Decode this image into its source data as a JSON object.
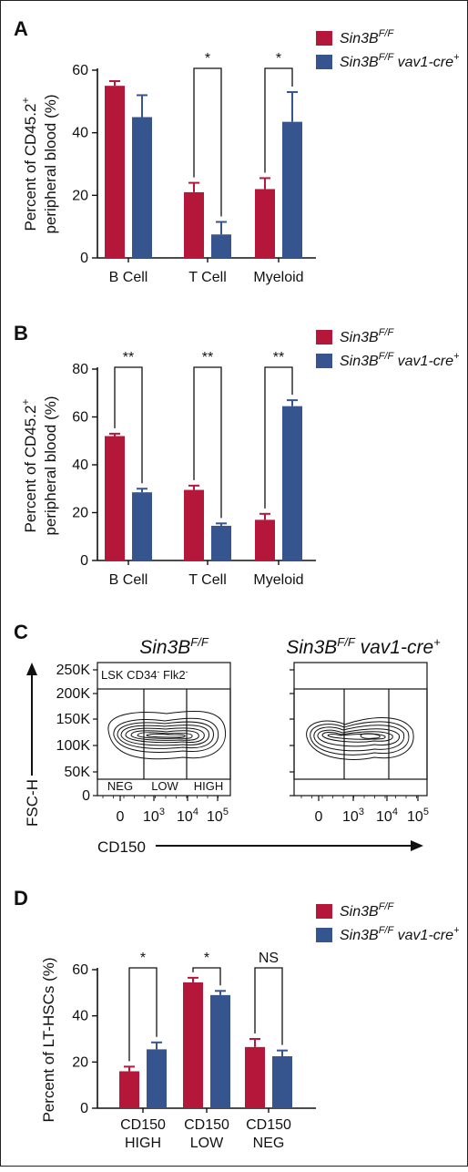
{
  "colors": {
    "flox": "#b5173a",
    "cre": "#36558f",
    "axis": "#111111",
    "contour": "#111111"
  },
  "legend": {
    "flox": {
      "base": "Sin3B",
      "sup": "F/F",
      "tail": "",
      "tail_sup": ""
    },
    "cre": {
      "base": "Sin3B",
      "sup": "F/F",
      "tail": " vav1-cre",
      "tail_sup": "+"
    }
  },
  "chart_data": [
    {
      "panel": "A",
      "type": "bar",
      "ylabel_line1": "Percent of CD45.2",
      "ylabel_sup": "+",
      "ylabel_line2": "peripheral blood (%)",
      "ylim": [
        0,
        60
      ],
      "yticks": [
        0,
        20,
        40,
        60
      ],
      "categories": [
        "B Cell",
        "T Cell",
        "Myeloid"
      ],
      "series": [
        {
          "key": "flox",
          "values": [
            55,
            21,
            22
          ],
          "errors": [
            1.5,
            3,
            3.5
          ]
        },
        {
          "key": "cre",
          "values": [
            45,
            7.5,
            43.5
          ],
          "errors": [
            7,
            4,
            9.5
          ]
        }
      ],
      "significance": [
        {
          "category": 1,
          "label": "*"
        },
        {
          "category": 2,
          "label": "*"
        }
      ]
    },
    {
      "panel": "B",
      "type": "bar",
      "ylabel_line1": "Percent of CD45.2",
      "ylabel_sup": "+",
      "ylabel_line2": "peripheral blood (%)",
      "ylim": [
        0,
        80
      ],
      "yticks": [
        0,
        20,
        40,
        60,
        80
      ],
      "categories": [
        "B Cell",
        "T Cell",
        "Myeloid"
      ],
      "series": [
        {
          "key": "flox",
          "values": [
            52,
            29.5,
            17
          ],
          "errors": [
            1,
            1.8,
            2.5
          ]
        },
        {
          "key": "cre",
          "values": [
            28.5,
            14.5,
            64.5
          ],
          "errors": [
            1.5,
            1,
            2.5
          ]
        }
      ],
      "significance": [
        {
          "category": 0,
          "label": "**"
        },
        {
          "category": 1,
          "label": "**"
        },
        {
          "category": 2,
          "label": "**"
        }
      ]
    },
    {
      "panel": "D",
      "type": "bar",
      "ylabel_line1": "Percent of LT-HSCs (%)",
      "ylabel_sup": "",
      "ylabel_line2": "",
      "ylim": [
        0,
        60
      ],
      "yticks": [
        0,
        20,
        40,
        60
      ],
      "categories": [
        [
          "CD150",
          "HIGH"
        ],
        [
          "CD150",
          "LOW"
        ],
        [
          "CD150",
          "NEG"
        ]
      ],
      "series": [
        {
          "key": "flox",
          "values": [
            16,
            54.5,
            26.5
          ],
          "errors": [
            2,
            2,
            3.5
          ]
        },
        {
          "key": "cre",
          "values": [
            25.5,
            49,
            22.5
          ],
          "errors": [
            3,
            1.8,
            2.5
          ]
        }
      ],
      "significance": [
        {
          "category": 0,
          "label": "*"
        },
        {
          "category": 1,
          "label": "*"
        },
        {
          "category": 2,
          "label": "NS"
        }
      ]
    }
  ],
  "flow": {
    "panel": "C",
    "titles": [
      {
        "base": "Sin3B",
        "sup": "F/F",
        "tail": "",
        "tail_sup": ""
      },
      {
        "base": "Sin3B",
        "sup": "F/F",
        "tail": " vav1-cre",
        "tail_sup": "+"
      }
    ],
    "yaxis_label": "FSC-H",
    "xaxis_label": "CD150",
    "yticks": [
      "0",
      "50K",
      "100K",
      "150K",
      "200K",
      "250K"
    ],
    "xticks": [
      {
        "base": "0",
        "exp": ""
      },
      {
        "base": "10",
        "exp": "3"
      },
      {
        "base": "10",
        "exp": "4"
      },
      {
        "base": "10",
        "exp": "5"
      }
    ],
    "gate_label": {
      "text": "LSK CD34",
      "sup1": "-",
      "text2": " Flk2",
      "sup2": "-"
    },
    "gates": [
      "NEG",
      "LOW",
      "HIGH"
    ]
  }
}
